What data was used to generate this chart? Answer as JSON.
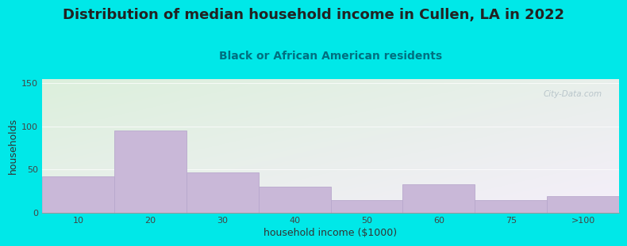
{
  "title": "Distribution of median household income in Cullen, LA in 2022",
  "subtitle": "Black or African American residents",
  "xlabel": "household income ($1000)",
  "ylabel": "households",
  "bar_labels": [
    "10",
    "20",
    "30",
    "40",
    "50",
    "60",
    "75",
    ">100"
  ],
  "bar_values": [
    42,
    95,
    47,
    30,
    15,
    33,
    15,
    19
  ],
  "bar_color": "#c9b8d8",
  "bar_edgecolor": "#b8a8cc",
  "ylim": [
    0,
    155
  ],
  "yticks": [
    0,
    50,
    100,
    150
  ],
  "bg_color": "#00e8e8",
  "plot_bg_topleft": [
    220,
    240,
    220
  ],
  "plot_bg_bottomright": [
    245,
    238,
    250
  ],
  "watermark": "City-Data.com",
  "title_fontsize": 13,
  "subtitle_fontsize": 10,
  "axis_label_fontsize": 9,
  "tick_fontsize": 8,
  "title_color": "#222222",
  "subtitle_color": "#007080",
  "watermark_color": "#b0bec5"
}
